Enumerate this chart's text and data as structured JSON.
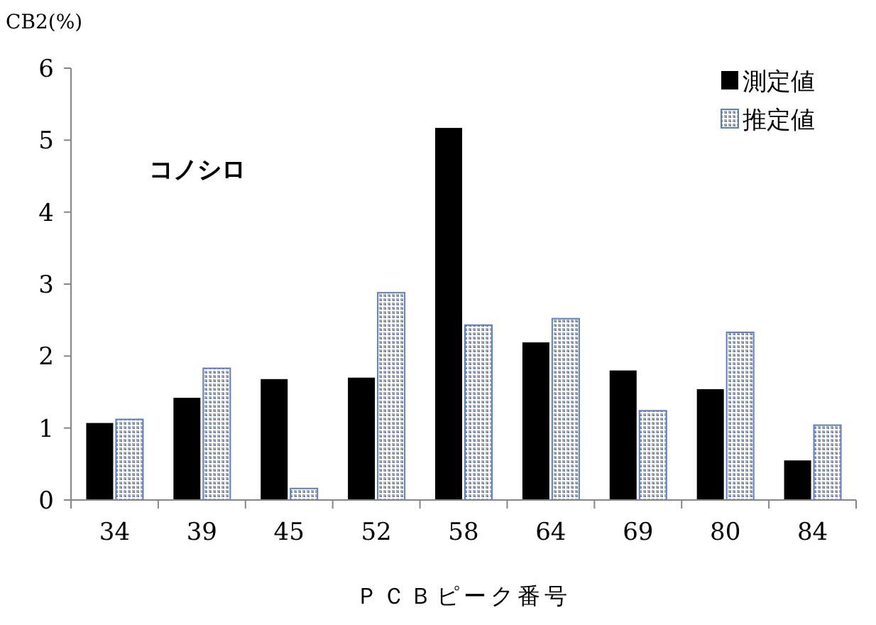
{
  "chart_data": {
    "type": "bar",
    "ylabel": "CB2(%)",
    "xlabel": "ＰＣＢピーク番号",
    "annotations": [
      "コノシロ"
    ],
    "categories": [
      "34",
      "39",
      "45",
      "52",
      "58",
      "64",
      "69",
      "80",
      "84"
    ],
    "series": [
      {
        "name": "測定値",
        "color": "#000000",
        "values": [
          1.07,
          1.42,
          1.68,
          1.7,
          5.17,
          2.19,
          1.8,
          1.54,
          0.55
        ]
      },
      {
        "name": "推定値",
        "color": "#5a7fc8",
        "values": [
          1.12,
          1.83,
          0.16,
          2.88,
          2.43,
          2.52,
          1.24,
          2.33,
          1.04
        ]
      }
    ],
    "ylim": [
      0,
      6
    ],
    "yticks": [
      0,
      1,
      2,
      3,
      4,
      5,
      6
    ],
    "legend": "top right"
  }
}
